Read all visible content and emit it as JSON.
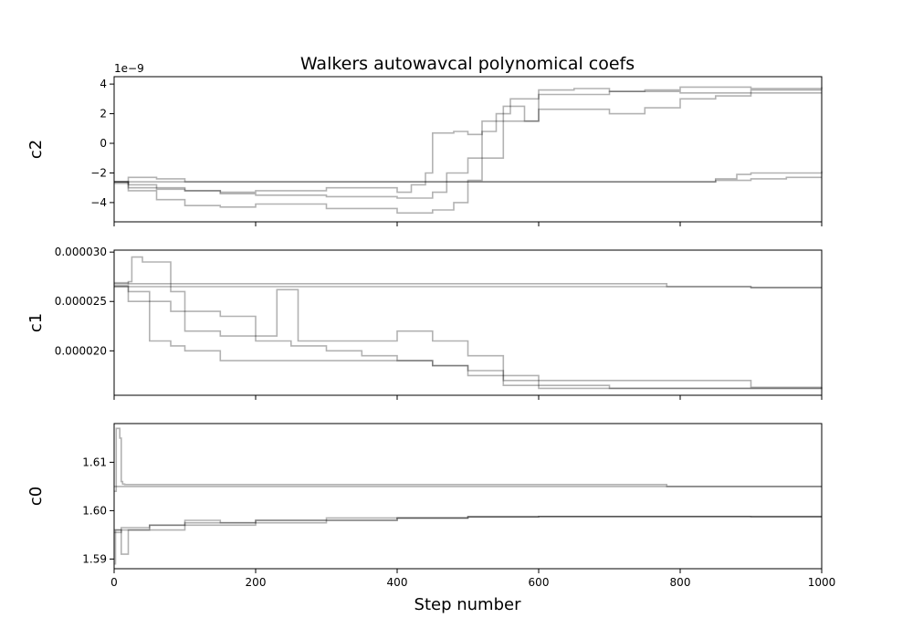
{
  "chart_data": {
    "type": "line",
    "title": "Walkers autowavcal polynomical coefs",
    "xlabel": "Step number",
    "xlim": [
      0,
      1000
    ],
    "xticks": [
      0,
      200,
      400,
      600,
      800,
      1000
    ],
    "xtick_labels": [
      "0",
      "200",
      "400",
      "600",
      "800",
      "1000"
    ],
    "grid": false,
    "panels": [
      {
        "ylabel": "c2",
        "offset_text": "1e−9",
        "ylim": [
          -5.3,
          4.5
        ],
        "yticks": [
          -4,
          -2,
          0,
          2,
          4
        ],
        "ytick_labels": [
          "−4",
          "−2",
          "0",
          "2",
          "4"
        ],
        "series": [
          {
            "x": [
              0,
              20,
              21,
              60,
              100,
              150,
              200,
              300,
              400,
              450,
              500,
              700,
              800,
              850,
              900,
              950,
              1000
            ],
            "values": [
              -2.6,
              -2.6,
              -2.6,
              -2.6,
              -2.6,
              -2.6,
              -2.6,
              -2.6,
              -2.6,
              -2.6,
              -2.6,
              -2.6,
              -2.6,
              -2.5,
              -2.4,
              -2.3,
              -2.3
            ]
          },
          {
            "x": [
              0,
              20,
              60,
              100,
              150,
              200,
              300,
              400,
              450,
              500,
              700,
              800,
              850,
              880,
              900,
              950,
              1000
            ],
            "values": [
              -2.7,
              -2.3,
              -2.4,
              -2.6,
              -2.6,
              -2.6,
              -2.6,
              -2.6,
              -2.6,
              -2.6,
              -2.6,
              -2.6,
              -2.4,
              -2.1,
              -2.0,
              -2.0,
              -1.9
            ]
          },
          {
            "x": [
              0,
              20,
              60,
              100,
              150,
              200,
              300,
              400,
              420,
              440,
              450,
              480,
              500,
              520,
              540,
              560,
              600,
              700,
              800,
              900,
              1000
            ],
            "values": [
              -2.6,
              -2.8,
              -3.0,
              -3.2,
              -3.3,
              -3.2,
              -3.0,
              -3.3,
              -2.8,
              -2.0,
              0.7,
              0.8,
              0.6,
              0.8,
              2.0,
              3.0,
              3.3,
              3.5,
              3.4,
              3.4,
              3.4
            ]
          },
          {
            "x": [
              0,
              20,
              60,
              100,
              150,
              200,
              300,
              400,
              450,
              470,
              500,
              550,
              600,
              650,
              700,
              750,
              800,
              900,
              1000
            ],
            "values": [
              -2.6,
              -3.0,
              -3.1,
              -3.2,
              -3.4,
              -3.5,
              -3.6,
              -3.7,
              -3.3,
              -2.0,
              -1.0,
              1.5,
              3.6,
              3.7,
              3.5,
              3.6,
              3.8,
              3.7,
              3.8
            ]
          },
          {
            "x": [
              0,
              20,
              60,
              100,
              150,
              200,
              300,
              400,
              450,
              480,
              500,
              520,
              550,
              580,
              600,
              700,
              750,
              800,
              850,
              900,
              1000
            ],
            "values": [
              -2.6,
              -3.2,
              -3.8,
              -4.2,
              -4.3,
              -4.1,
              -4.4,
              -4.7,
              -4.5,
              -4.0,
              -2.5,
              1.5,
              2.5,
              1.5,
              2.3,
              2.0,
              2.4,
              3.0,
              3.2,
              3.6,
              3.6
            ]
          }
        ]
      },
      {
        "ylabel": "c1",
        "offset_text": "",
        "ylim": [
          1.55e-05,
          3.02e-05
        ],
        "yticks": [
          2e-05,
          2.5e-05,
          3e-05
        ],
        "ytick_labels": [
          "0.000020",
          "0.000025",
          "0.000030"
        ],
        "series": [
          {
            "x": [
              0,
              20,
              60,
              100,
              200,
              400,
              600,
              780,
              781,
              900,
              1000
            ],
            "values": [
              2.69e-05,
              2.68e-05,
              2.68e-05,
              2.68e-05,
              2.68e-05,
              2.68e-05,
              2.68e-05,
              2.68e-05,
              2.65e-05,
              2.64e-05,
              2.64e-05
            ]
          },
          {
            "x": [
              0,
              20,
              60,
              100,
              200,
              400,
              600,
              800,
              900,
              1000
            ],
            "values": [
              2.65e-05,
              2.65e-05,
              2.65e-05,
              2.65e-05,
              2.65e-05,
              2.65e-05,
              2.65e-05,
              2.65e-05,
              2.64e-05,
              2.64e-05
            ]
          },
          {
            "x": [
              0,
              20,
              25,
              40,
              70,
              80,
              100,
              150,
              200,
              230,
              260,
              300,
              400,
              450,
              500,
              550,
              600,
              700,
              800,
              900,
              1000
            ],
            "values": [
              2.68e-05,
              2.7e-05,
              2.95e-05,
              2.9e-05,
              2.9e-05,
              2.6e-05,
              2.4e-05,
              2.35e-05,
              2.15e-05,
              2.62e-05,
              2.1e-05,
              2.1e-05,
              2.2e-05,
              2.1e-05,
              1.95e-05,
              1.75e-05,
              1.7e-05,
              1.7e-05,
              1.7e-05,
              1.63e-05,
              1.63e-05
            ]
          },
          {
            "x": [
              0,
              20,
              50,
              80,
              100,
              150,
              200,
              250,
              300,
              350,
              400,
              450,
              500,
              550,
              600,
              700,
              800,
              900,
              1000
            ],
            "values": [
              2.66e-05,
              2.6e-05,
              2.5e-05,
              2.4e-05,
              2.2e-05,
              2.15e-05,
              2.1e-05,
              2.05e-05,
              2e-05,
              1.95e-05,
              1.9e-05,
              1.85e-05,
              1.75e-05,
              1.65e-05,
              1.62e-05,
              1.62e-05,
              1.62e-05,
              1.62e-05,
              1.63e-05
            ]
          },
          {
            "x": [
              0,
              20,
              50,
              80,
              100,
              150,
              200,
              250,
              300,
              350,
              400,
              450,
              500,
              550,
              600,
              700,
              800,
              900,
              1000
            ],
            "values": [
              2.65e-05,
              2.5e-05,
              2.1e-05,
              2.05e-05,
              2e-05,
              1.9e-05,
              1.9e-05,
              1.9e-05,
              1.9e-05,
              1.9e-05,
              1.9e-05,
              1.85e-05,
              1.8e-05,
              1.7e-05,
              1.65e-05,
              1.62e-05,
              1.62e-05,
              1.62e-05,
              1.62e-05
            ]
          }
        ]
      },
      {
        "ylabel": "c0",
        "offset_text": "",
        "ylim": [
          1.588,
          1.618
        ],
        "yticks": [
          1.59,
          1.6,
          1.61
        ],
        "ytick_labels": [
          "1.59",
          "1.60",
          "1.61"
        ],
        "series": [
          {
            "x": [
              0,
              3,
              5,
              8,
              10,
              12,
              15,
              100,
              200,
              400,
              600,
              780,
              781,
              900,
              1000
            ],
            "values": [
              1.604,
              1.617,
              1.617,
              1.615,
              1.606,
              1.6055,
              1.6054,
              1.6054,
              1.6054,
              1.6054,
              1.6054,
              1.6054,
              1.605,
              1.605,
              1.605
            ]
          },
          {
            "x": [
              0,
              10,
              20,
              100,
              200,
              400,
              600,
              800,
              1000
            ],
            "values": [
              1.605,
              1.605,
              1.605,
              1.605,
              1.605,
              1.605,
              1.605,
              1.605,
              1.605
            ]
          },
          {
            "x": [
              0,
              2,
              10,
              15,
              20,
              50,
              100,
              200,
              300,
              400,
              500,
              600,
              700,
              800,
              900,
              1000
            ],
            "values": [
              1.589,
              1.596,
              1.591,
              1.591,
              1.596,
              1.596,
              1.597,
              1.598,
              1.598,
              1.5985,
              1.5987,
              1.5988,
              1.5988,
              1.5988,
              1.5987,
              1.5987
            ]
          },
          {
            "x": [
              0,
              10,
              50,
              100,
              200,
              300,
              400,
              500,
              600,
              700,
              800,
              900,
              1000
            ],
            "values": [
              1.596,
              1.596,
              1.597,
              1.5975,
              1.5975,
              1.598,
              1.5985,
              1.5987,
              1.5988,
              1.5988,
              1.5988,
              1.5988,
              1.5988
            ]
          },
          {
            "x": [
              0,
              10,
              50,
              100,
              150,
              200,
              300,
              400,
              500,
              600,
              700,
              800,
              900,
              1000
            ],
            "values": [
              1.5955,
              1.5965,
              1.597,
              1.598,
              1.5975,
              1.598,
              1.5985,
              1.5985,
              1.5988,
              1.5988,
              1.5988,
              1.5988,
              1.5988,
              1.5988
            ]
          }
        ]
      }
    ]
  }
}
